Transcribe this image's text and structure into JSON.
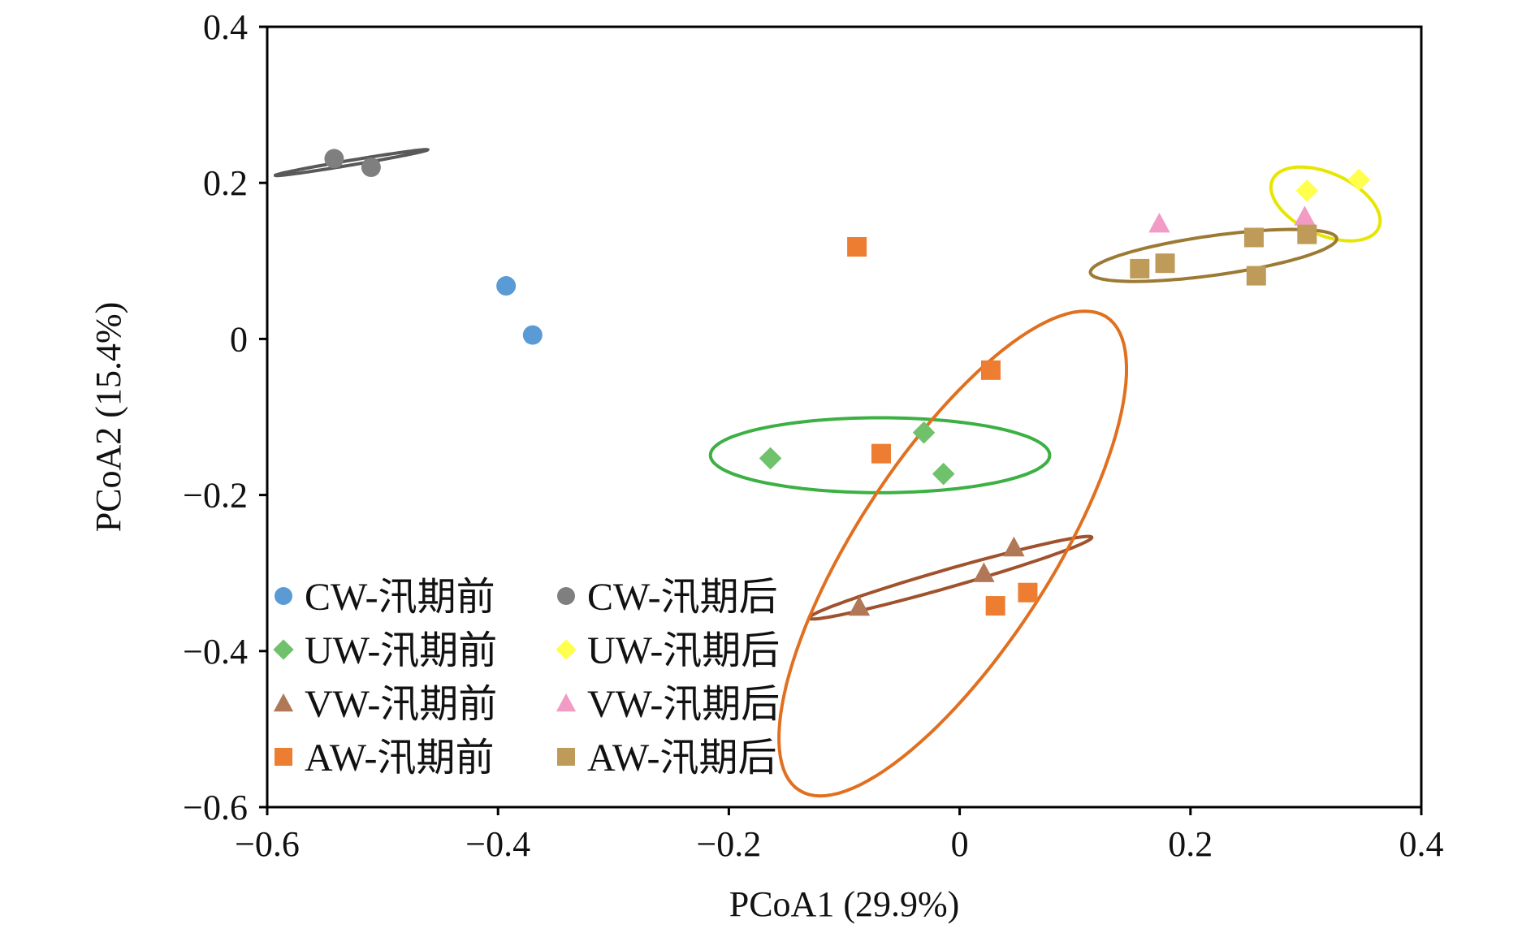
{
  "chart_data": {
    "type": "scatter",
    "title": "",
    "xlabel": "PCoA1 (29.9%)",
    "ylabel": "PCoA2 (15.4%)",
    "xlim": [
      -0.6,
      0.4
    ],
    "ylim": [
      -0.6,
      0.4
    ],
    "xticks": [
      -0.6,
      -0.4,
      -0.2,
      0,
      0.2,
      0.4
    ],
    "yticks": [
      -0.6,
      -0.4,
      -0.2,
      0,
      0.2,
      0.4
    ],
    "xtick_labels": [
      "−0.6",
      "−0.4",
      "−0.2",
      "0",
      "0.2",
      "0.4"
    ],
    "ytick_labels": [
      "−0.6",
      "−0.4",
      "−0.2",
      "0",
      "0.2",
      "0.4"
    ],
    "grid": false,
    "legend_position": "bottom-left",
    "series": [
      {
        "name": "CW-汛期前",
        "marker": "circle",
        "color": "#5b9bd5",
        "points": [
          [
            -0.393,
            0.068
          ],
          [
            -0.37,
            0.005
          ]
        ]
      },
      {
        "name": "CW-汛期后",
        "marker": "circle",
        "color": "#7f7f7f",
        "points": [
          [
            -0.542,
            0.231
          ],
          [
            -0.51,
            0.22
          ]
        ],
        "ellipse": {
          "cx": -0.527,
          "cy": 0.226,
          "rx": 0.068,
          "ry": 0.003,
          "angle_deg": 14,
          "color": "#595959"
        }
      },
      {
        "name": "UW-汛期前",
        "marker": "diamond",
        "color": "#70c16b",
        "points": [
          [
            -0.164,
            -0.153
          ],
          [
            -0.031,
            -0.12
          ],
          [
            -0.014,
            -0.173
          ]
        ],
        "ellipse": {
          "cx": -0.069,
          "cy": -0.149,
          "rx": 0.147,
          "ry": 0.048,
          "angle_deg": 0,
          "color": "#3cb043"
        }
      },
      {
        "name": "UW-汛期后",
        "marker": "diamond",
        "color": "#ffff4d",
        "points": [
          [
            0.301,
            0.19
          ],
          [
            0.346,
            0.204
          ]
        ],
        "ellipse": {
          "cx": 0.317,
          "cy": 0.173,
          "rx": 0.057,
          "ry": 0.035,
          "angle_deg": -45,
          "color": "#e6e600"
        }
      },
      {
        "name": "VW-汛期前",
        "marker": "triangle",
        "color": "#b07856",
        "points": [
          [
            -0.087,
            -0.343
          ],
          [
            0.021,
            -0.3
          ],
          [
            0.047,
            -0.267
          ]
        ],
        "ellipse": {
          "cx": -0.008,
          "cy": -0.306,
          "rx": 0.133,
          "ry": 0.011,
          "angle_deg": 23,
          "color": "#a0522d"
        }
      },
      {
        "name": "VW-汛期后",
        "marker": "triangle",
        "color": "#f29bc4",
        "points": [
          [
            0.173,
            0.148
          ],
          [
            0.299,
            0.157
          ]
        ]
      },
      {
        "name": "AW-汛期前",
        "marker": "square",
        "color": "#ed7d31",
        "points": [
          [
            -0.089,
            0.118
          ],
          [
            -0.068,
            -0.147
          ],
          [
            0.027,
            -0.04
          ],
          [
            0.031,
            -0.342
          ],
          [
            0.059,
            -0.325
          ]
        ],
        "ellipse": {
          "cx": -0.006,
          "cy": -0.275,
          "rx": 0.333,
          "ry": 0.091,
          "angle_deg": 68,
          "color": "#e07020"
        }
      },
      {
        "name": "AW-汛期后",
        "marker": "square",
        "color": "#bf9b5a",
        "points": [
          [
            0.156,
            0.09
          ],
          [
            0.178,
            0.097
          ],
          [
            0.255,
            0.13
          ],
          [
            0.257,
            0.081
          ],
          [
            0.301,
            0.134
          ]
        ],
        "ellipse": {
          "cx": 0.22,
          "cy": 0.107,
          "rx": 0.109,
          "ry": 0.025,
          "angle_deg": 12,
          "color": "#9c7a33"
        }
      }
    ]
  }
}
